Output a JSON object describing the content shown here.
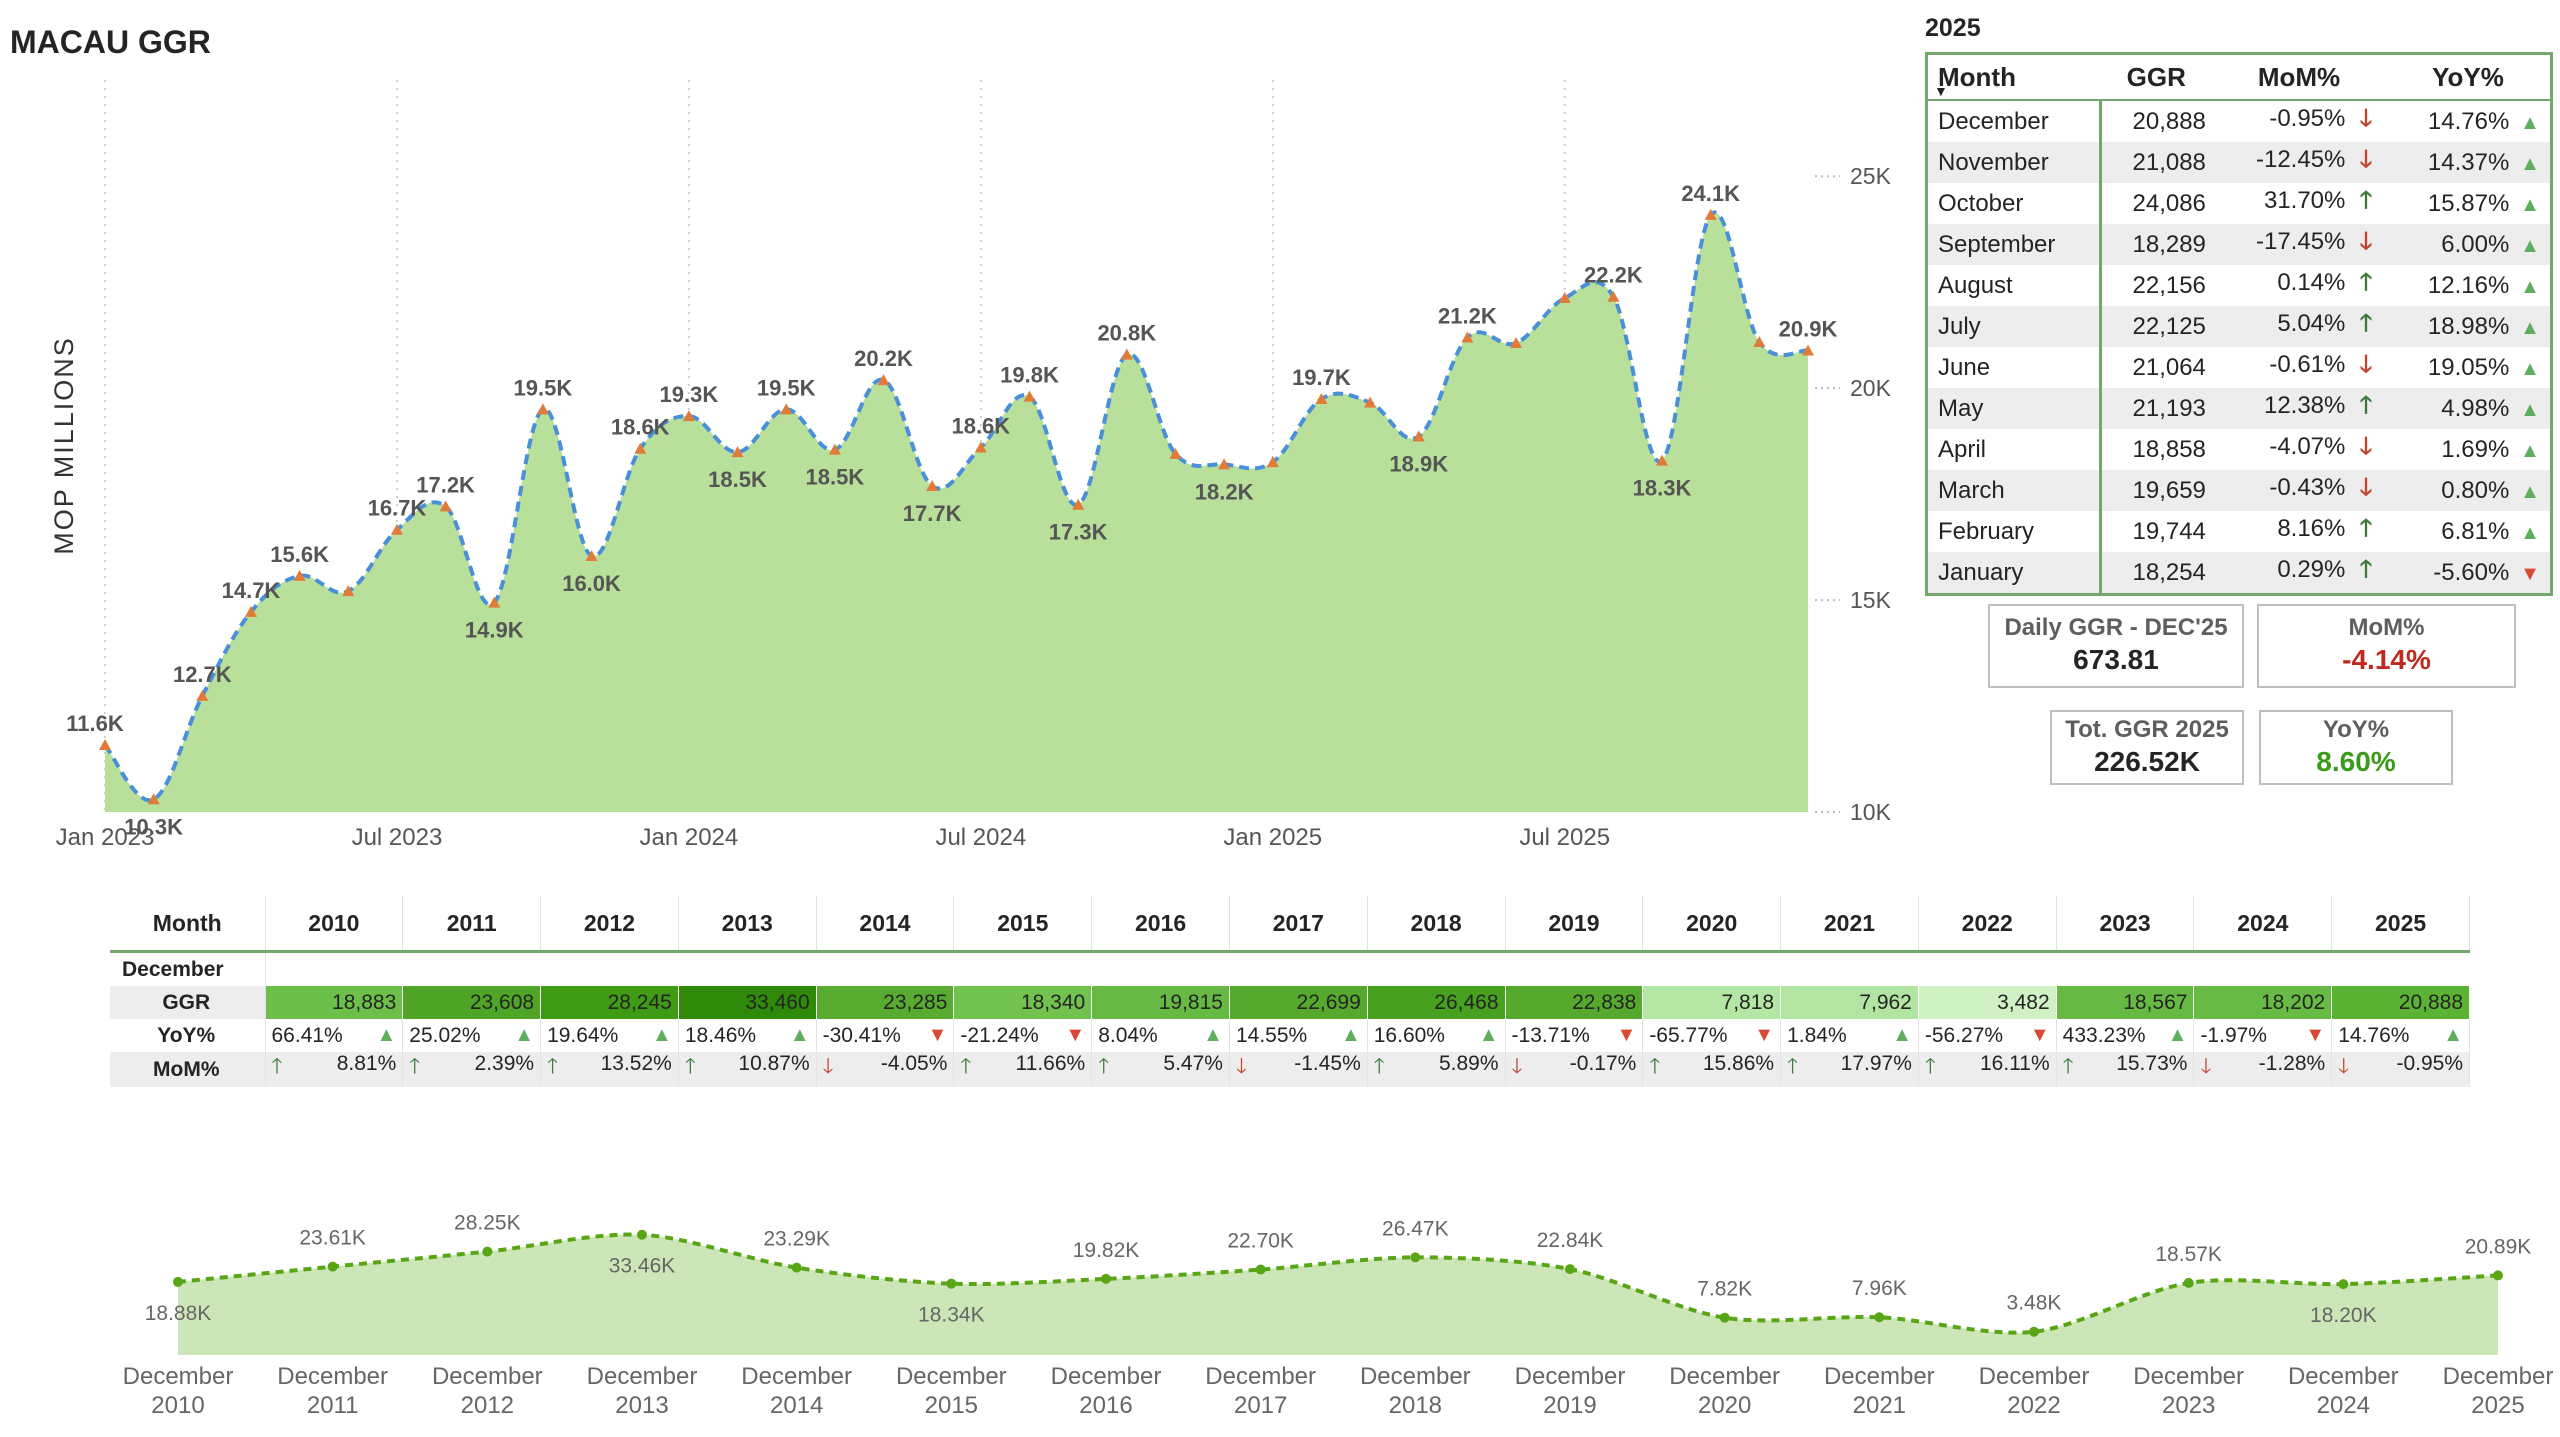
{
  "title": "MACAU GGR",
  "colors": {
    "area": "#b9e09b",
    "line": "#4a90d9",
    "marker": "#e07b39",
    "accent_green": "#73a86d",
    "bottom_area": "#cce6b8",
    "bottom_line": "#58a616"
  },
  "chart_data": [
    {
      "type": "area",
      "ylabel": "MOP MILLIONS",
      "ylim": [
        10000,
        25500
      ],
      "yticks": [
        "10K",
        "15K",
        "20K",
        "25K"
      ],
      "xticks": [
        "Jan 2023",
        "Jul 2023",
        "Jan 2024",
        "Jul 2024",
        "Jan 2025",
        "Jul 2025"
      ],
      "grid": "vertical dotted",
      "x": [
        "2023-01",
        "2023-02",
        "2023-03",
        "2023-04",
        "2023-05",
        "2023-06",
        "2023-07",
        "2023-08",
        "2023-09",
        "2023-10",
        "2023-11",
        "2023-12",
        "2024-01",
        "2024-02",
        "2024-03",
        "2024-04",
        "2024-05",
        "2024-06",
        "2024-07",
        "2024-08",
        "2024-09",
        "2024-10",
        "2024-11",
        "2024-12",
        "2025-01",
        "2025-02",
        "2025-03",
        "2025-04",
        "2025-05",
        "2025-06",
        "2025-07",
        "2025-08",
        "2025-09",
        "2025-10",
        "2025-11",
        "2025-12"
      ],
      "values": [
        11580,
        10300,
        12740,
        14720,
        15570,
        15210,
        16660,
        17210,
        14940,
        19500,
        16040,
        18570,
        19340,
        18490,
        19500,
        18550,
        20190,
        17690,
        18600,
        19800,
        17250,
        20790,
        18450,
        18200,
        18254,
        19744,
        19659,
        18858,
        21193,
        21064,
        22125,
        22156,
        18289,
        24086,
        21088,
        20888
      ],
      "data_labels": [
        "11.6K",
        "10.3K",
        "12.7K",
        "14.7K",
        "15.6K",
        "",
        "16.7K",
        "17.2K",
        "14.9K",
        "19.5K",
        "16.0K",
        "18.6K",
        "19.3K",
        "18.5K",
        "19.5K",
        "18.5K",
        "20.2K",
        "17.7K",
        "18.6K",
        "19.8K",
        "17.3K",
        "20.8K",
        "",
        "18.2K",
        "",
        "19.7K",
        "",
        "18.9K",
        "21.2K",
        "",
        "",
        "22.2K",
        "18.3K",
        "24.1K",
        "",
        "20.9K"
      ]
    },
    {
      "type": "area",
      "categories": [
        "December 2010",
        "December 2011",
        "December 2012",
        "December 2013",
        "December 2014",
        "December 2015",
        "December 2016",
        "December 2017",
        "December 2018",
        "December 2019",
        "December 2020",
        "December 2021",
        "December 2022",
        "December 2023",
        "December 2024",
        "December 2025"
      ],
      "values": [
        18.88,
        23.61,
        28.25,
        33.46,
        23.29,
        18.34,
        19.82,
        22.7,
        26.47,
        22.84,
        7.82,
        7.96,
        3.48,
        18.57,
        18.2,
        20.89
      ],
      "data_labels": [
        "18.88K",
        "23.61K",
        "28.25K",
        "33.46K",
        "23.29K",
        "18.34K",
        "19.82K",
        "22.70K",
        "26.47K",
        "22.84K",
        "7.82K",
        "7.96K",
        "3.48K",
        "18.57K",
        "18.20K",
        "20.89K"
      ],
      "label_pos": [
        "below",
        "above",
        "above",
        "below",
        "above",
        "below",
        "above",
        "above",
        "above",
        "above",
        "above",
        "above",
        "above",
        "above",
        "below",
        "above"
      ]
    }
  ],
  "table2025": {
    "year": "2025",
    "headers": [
      "Month",
      "GGR",
      "MoM%",
      "YoY%"
    ],
    "rows": [
      {
        "month": "December",
        "ggr": "20,888",
        "mom": "-0.95%",
        "mom_dir": "down",
        "yoy": "14.76%",
        "yoy_dir": "up"
      },
      {
        "month": "November",
        "ggr": "21,088",
        "mom": "-12.45%",
        "mom_dir": "down",
        "yoy": "14.37%",
        "yoy_dir": "up"
      },
      {
        "month": "October",
        "ggr": "24,086",
        "mom": "31.70%",
        "mom_dir": "up",
        "yoy": "15.87%",
        "yoy_dir": "up"
      },
      {
        "month": "September",
        "ggr": "18,289",
        "mom": "-17.45%",
        "mom_dir": "down",
        "yoy": "6.00%",
        "yoy_dir": "up"
      },
      {
        "month": "August",
        "ggr": "22,156",
        "mom": "0.14%",
        "mom_dir": "up",
        "yoy": "12.16%",
        "yoy_dir": "up"
      },
      {
        "month": "July",
        "ggr": "22,125",
        "mom": "5.04%",
        "mom_dir": "up",
        "yoy": "18.98%",
        "yoy_dir": "up"
      },
      {
        "month": "June",
        "ggr": "21,064",
        "mom": "-0.61%",
        "mom_dir": "down",
        "yoy": "19.05%",
        "yoy_dir": "up"
      },
      {
        "month": "May",
        "ggr": "21,193",
        "mom": "12.38%",
        "mom_dir": "up",
        "yoy": "4.98%",
        "yoy_dir": "up"
      },
      {
        "month": "April",
        "ggr": "18,858",
        "mom": "-4.07%",
        "mom_dir": "down",
        "yoy": "1.69%",
        "yoy_dir": "up"
      },
      {
        "month": "March",
        "ggr": "19,659",
        "mom": "-0.43%",
        "mom_dir": "down",
        "yoy": "0.80%",
        "yoy_dir": "up"
      },
      {
        "month": "February",
        "ggr": "19,744",
        "mom": "8.16%",
        "mom_dir": "up",
        "yoy": "6.81%",
        "yoy_dir": "up"
      },
      {
        "month": "January",
        "ggr": "18,254",
        "mom": "0.29%",
        "mom_dir": "up",
        "yoy": "-5.60%",
        "yoy_dir": "down"
      }
    ]
  },
  "cards": {
    "daily": {
      "label": "Daily GGR - DEC'25",
      "value": "673.81"
    },
    "mom": {
      "label": "MoM%",
      "value": "-4.14%"
    },
    "total": {
      "label": "Tot. GGR 2025",
      "value": "226.52K"
    },
    "yoy": {
      "label": "YoY%",
      "value": "8.60%"
    }
  },
  "matrix": {
    "header_label": "Month",
    "group_label": "December",
    "row_labels": {
      "ggr": "GGR",
      "yoy": "YoY%",
      "mom": "MoM%"
    },
    "years": [
      "2010",
      "2011",
      "2012",
      "2013",
      "2014",
      "2015",
      "2016",
      "2017",
      "2018",
      "2019",
      "2020",
      "2021",
      "2022",
      "2023",
      "2024",
      "2025"
    ],
    "ggr": [
      "18,883",
      "23,608",
      "28,245",
      "33,460",
      "23,285",
      "18,340",
      "19,815",
      "22,699",
      "26,468",
      "22,838",
      "7,818",
      "7,962",
      "3,482",
      "18,567",
      "18,202",
      "20,888"
    ],
    "ggr_colors": [
      "#6cc04a",
      "#4fa526",
      "#3f9a14",
      "#2f8a0a",
      "#57ac2f",
      "#71c24f",
      "#66ba44",
      "#55aa2d",
      "#47a01e",
      "#55aa2d",
      "#b4e6a4",
      "#b2e5a2",
      "#d0f1c4",
      "#66ba44",
      "#67bb45",
      "#5ab332"
    ],
    "yoy": [
      "66.41%",
      "25.02%",
      "19.64%",
      "18.46%",
      "-30.41%",
      "-21.24%",
      "8.04%",
      "14.55%",
      "16.60%",
      "-13.71%",
      "-65.77%",
      "1.84%",
      "-56.27%",
      "433.23%",
      "-1.97%",
      "14.76%"
    ],
    "yoy_dir": [
      "up",
      "up",
      "up",
      "up",
      "down",
      "down",
      "up",
      "up",
      "up",
      "down",
      "down",
      "up",
      "down",
      "up",
      "down",
      "up"
    ],
    "mom": [
      "8.81%",
      "2.39%",
      "13.52%",
      "10.87%",
      "-4.05%",
      "11.66%",
      "5.47%",
      "-1.45%",
      "5.89%",
      "-0.17%",
      "15.86%",
      "17.97%",
      "16.11%",
      "15.73%",
      "-1.28%",
      "-0.95%"
    ],
    "mom_dir": [
      "up",
      "up",
      "up",
      "up",
      "down",
      "up",
      "up",
      "down",
      "up",
      "down",
      "up",
      "up",
      "up",
      "up",
      "down",
      "down"
    ]
  }
}
